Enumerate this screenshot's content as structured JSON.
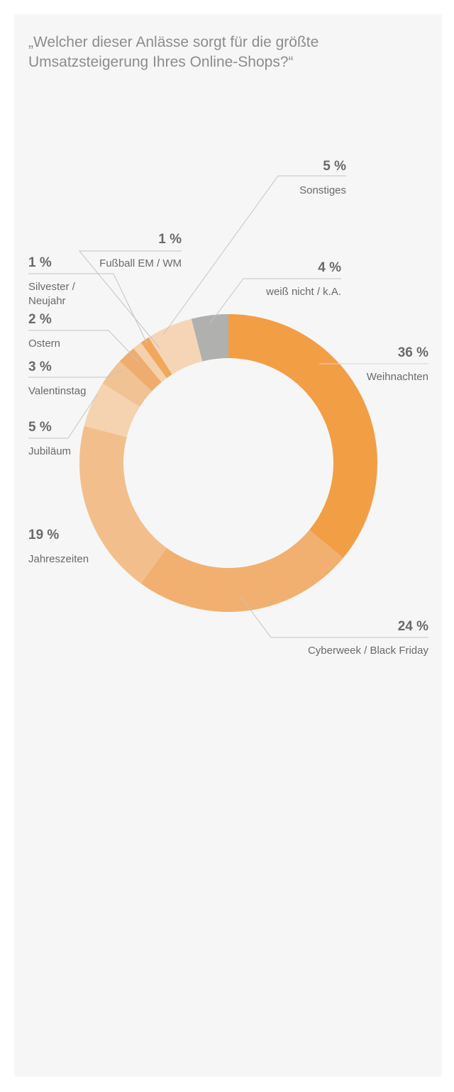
{
  "title": "„Welcher dieser Anlässe sorgt für die größte Umsatzsteigerung Ihres Online-Shops?“",
  "chart_data": {
    "type": "pie",
    "donut": true,
    "title": "„Welcher dieser Anlässe sorgt für die größte Umsatzsteigerung Ihres Online-Shops?“",
    "unit": "%",
    "slices": [
      {
        "label": "Weihnachten",
        "display": "36 %",
        "value": 36,
        "color": "#f29e45"
      },
      {
        "label": "Cyberweek / Black Friday",
        "display": "24 %",
        "value": 24,
        "color": "#f1b070"
      },
      {
        "label": "Jahreszeiten",
        "display": "19 %",
        "value": 19,
        "color": "#f2bf8c"
      },
      {
        "label": "Jubiläum",
        "display": "5 %",
        "value": 5,
        "color": "#f5d3b0"
      },
      {
        "label": "Valentinstag",
        "display": "3 %",
        "value": 3,
        "color": "#f0c294"
      },
      {
        "label": "Ostern",
        "display": "2 %",
        "value": 2,
        "color": "#eead6e"
      },
      {
        "label": "Silvester / Neujahr",
        "display": "1 %",
        "value": 1,
        "color": "#f5d0ac"
      },
      {
        "label": "Fußball EM / WM",
        "display": "1 %",
        "value": 1,
        "color": "#f1a85c"
      },
      {
        "label": "Sonstiges",
        "display": "5 %",
        "value": 5,
        "color": "#f6d5b6"
      },
      {
        "label": "weiß nicht / k.A.",
        "display": "4 %",
        "value": 4,
        "color": "#b0b0ae"
      }
    ]
  }
}
